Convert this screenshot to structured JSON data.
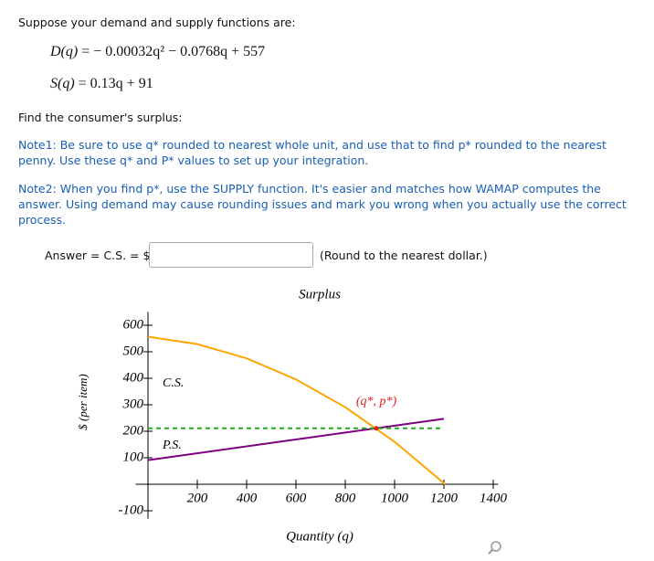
{
  "intro": "Suppose your demand and supply functions are:",
  "equations": [
    {
      "lhs": "D(q)",
      "rhs": "=  − 0.00032q² − 0.0768q + 557"
    },
    {
      "lhs": "S(q)",
      "rhs": "= 0.13q + 91"
    }
  ],
  "question": "Find the consumer's surplus:",
  "note1": [
    "Note1:  Be sure to use q* rounded to nearest whole unit, and use that to find p* rounded to the nearest",
    "penny. Use these q* and P* values to set up your integration."
  ],
  "note2": [
    "Note2: When you find p*, use the SUPPLY function. It's easier and matches how WAMAP computes the",
    "answer. Using demand may cause rounding issues and mark you wrong when you actually use the correct",
    "process."
  ],
  "answer": {
    "label": "Answer = C.S. = $",
    "hint": "(Round to the nearest dollar.)"
  },
  "chart_data": {
    "type": "line",
    "title": "Surplus",
    "x_label": "Quantity (q)",
    "y_label": "$ (per item)",
    "xlim": [
      -50,
      1420
    ],
    "ylim": [
      -130,
      650
    ],
    "xticks": [
      200,
      400,
      600,
      800,
      1000,
      1200,
      1400
    ],
    "yticks": [
      600,
      500,
      400,
      300,
      200,
      100,
      -100
    ],
    "series": [
      {
        "name": "D(q)",
        "color": "#ffa500",
        "x": [
          0,
          200,
          400,
          600,
          800,
          1000,
          1200,
          1205
        ],
        "values": [
          557,
          528.8,
          475.1,
          395.7,
          290.8,
          160.2,
          4,
          0
        ]
      },
      {
        "name": "S(q)",
        "color": "#800080",
        "x": [
          0,
          1200
        ],
        "values": [
          91,
          247
        ]
      },
      {
        "name": "p*",
        "color": "#22aa22",
        "dashed": true,
        "x": [
          0,
          1200
        ],
        "values": [
          211,
          211
        ]
      }
    ],
    "equilibrium": {
      "x": 926,
      "y": 211,
      "color": "#e02020"
    },
    "annotations": [
      "C.S.",
      "P.S.",
      "(q*, p*)"
    ]
  }
}
